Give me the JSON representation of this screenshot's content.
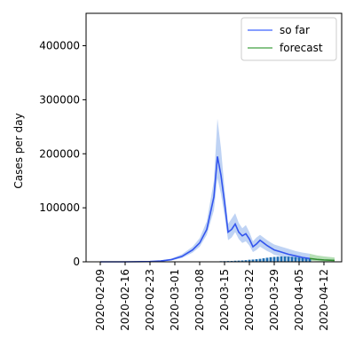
{
  "chart_data": {
    "type": "line",
    "title": "",
    "xlabel": "",
    "ylabel": "Cases per day",
    "xlim": [
      "2020-02-05",
      "2020-04-17"
    ],
    "ylim": [
      0,
      460000
    ],
    "x_ticks": [
      "2020-02-09",
      "2020-02-16",
      "2020-02-23",
      "2020-03-01",
      "2020-03-08",
      "2020-03-15",
      "2020-03-22",
      "2020-03-29",
      "2020-04-05",
      "2020-04-12"
    ],
    "y_ticks": [
      0,
      100000,
      200000,
      300000,
      400000
    ],
    "y_tick_labels": [
      "0",
      "100000",
      "200000",
      "300000",
      "400000"
    ],
    "legend": {
      "position": "top-right",
      "entries": [
        {
          "label": "so far",
          "color": "#5f7fff"
        },
        {
          "label": "forecast",
          "color": "#60b060"
        }
      ]
    },
    "series": [
      {
        "name": "so far",
        "color": "#3355ee",
        "band_color": "#aac4f0",
        "points": [
          [
            "2020-02-09",
            0,
            0,
            0
          ],
          [
            "2020-02-16",
            0,
            0,
            0
          ],
          [
            "2020-02-23",
            500,
            300,
            800
          ],
          [
            "2020-02-26",
            1500,
            800,
            2500
          ],
          [
            "2020-02-29",
            4000,
            2500,
            6000
          ],
          [
            "2020-03-03",
            10000,
            7000,
            14000
          ],
          [
            "2020-03-06",
            22000,
            17000,
            28000
          ],
          [
            "2020-03-08",
            35000,
            28000,
            44000
          ],
          [
            "2020-03-10",
            60000,
            50000,
            75000
          ],
          [
            "2020-03-12",
            120000,
            95000,
            150000
          ],
          [
            "2020-03-13",
            195000,
            155000,
            265000
          ],
          [
            "2020-03-14",
            160000,
            125000,
            210000
          ],
          [
            "2020-03-15",
            110000,
            85000,
            135000
          ],
          [
            "2020-03-16",
            55000,
            40000,
            70000
          ],
          [
            "2020-03-17",
            60000,
            45000,
            80000
          ],
          [
            "2020-03-18",
            70000,
            55000,
            90000
          ],
          [
            "2020-03-19",
            55000,
            42000,
            72000
          ],
          [
            "2020-03-20",
            48000,
            35000,
            62000
          ],
          [
            "2020-03-21",
            52000,
            38000,
            68000
          ],
          [
            "2020-03-22",
            42000,
            30000,
            55000
          ],
          [
            "2020-03-23",
            28000,
            18000,
            38000
          ],
          [
            "2020-03-24",
            33000,
            22000,
            45000
          ],
          [
            "2020-03-25",
            40000,
            28000,
            50000
          ],
          [
            "2020-03-26",
            35000,
            24000,
            45000
          ],
          [
            "2020-03-27",
            30000,
            20000,
            40000
          ],
          [
            "2020-03-28",
            26000,
            17000,
            36000
          ],
          [
            "2020-03-29",
            22000,
            13000,
            32000
          ],
          [
            "2020-03-31",
            18000,
            10000,
            28000
          ],
          [
            "2020-04-02",
            14000,
            7000,
            24000
          ],
          [
            "2020-04-04",
            11000,
            5000,
            20000
          ],
          [
            "2020-04-06",
            8000,
            3000,
            17000
          ],
          [
            "2020-04-08",
            6000,
            2000,
            15000
          ]
        ]
      },
      {
        "name": "forecast",
        "color": "#2e8b2e",
        "band_color": "#9ed49e",
        "points": [
          [
            "2020-04-08",
            6000,
            2000,
            15000
          ],
          [
            "2020-04-10",
            4500,
            1200,
            12000
          ],
          [
            "2020-04-12",
            3500,
            800,
            10000
          ],
          [
            "2020-04-15",
            2500,
            400,
            8000
          ]
        ]
      }
    ],
    "observed_bars": {
      "color": "#1f6fb4",
      "points": [
        [
          "2020-03-14",
          1200
        ],
        [
          "2020-03-15",
          1300
        ],
        [
          "2020-03-16",
          1500
        ],
        [
          "2020-03-17",
          1600
        ],
        [
          "2020-03-18",
          2000
        ],
        [
          "2020-03-19",
          2200
        ],
        [
          "2020-03-20",
          2500
        ],
        [
          "2020-03-21",
          3000
        ],
        [
          "2020-03-22",
          3800
        ],
        [
          "2020-03-23",
          4200
        ],
        [
          "2020-03-24",
          4800
        ],
        [
          "2020-03-25",
          5500
        ],
        [
          "2020-03-26",
          6500
        ],
        [
          "2020-03-27",
          7500
        ],
        [
          "2020-03-28",
          8500
        ],
        [
          "2020-03-29",
          9000
        ],
        [
          "2020-03-30",
          9500
        ],
        [
          "2020-03-31",
          10000
        ],
        [
          "2020-04-01",
          9800
        ],
        [
          "2020-04-02",
          9500
        ],
        [
          "2020-04-03",
          9200
        ],
        [
          "2020-04-04",
          8800
        ],
        [
          "2020-04-05",
          8000
        ],
        [
          "2020-04-06",
          7500
        ],
        [
          "2020-04-07",
          7000
        ],
        [
          "2020-04-08",
          6500
        ]
      ]
    }
  }
}
